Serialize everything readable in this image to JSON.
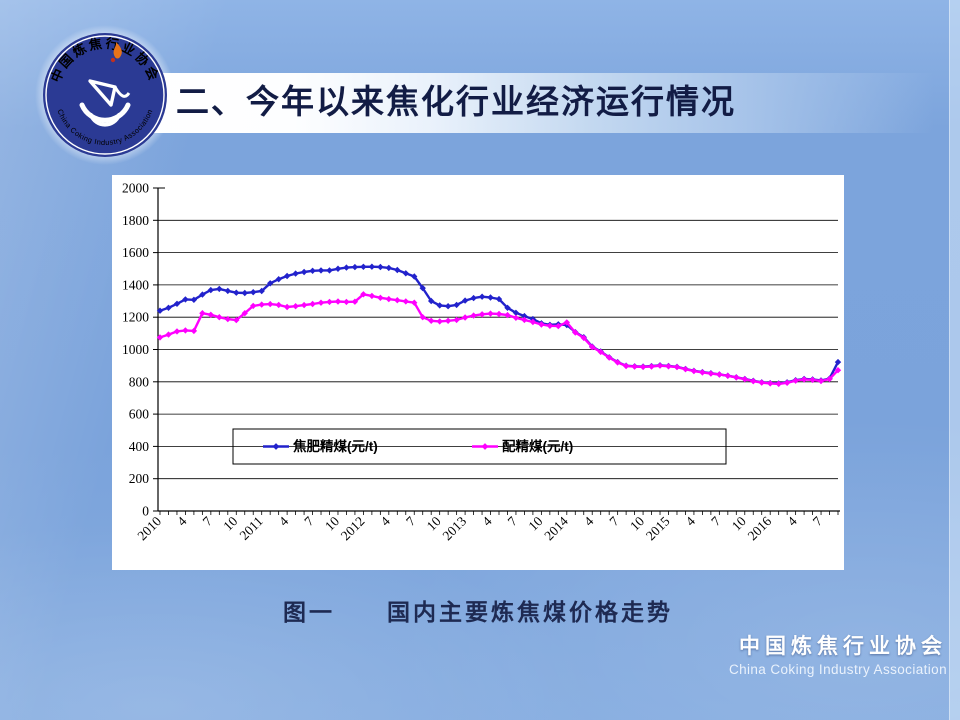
{
  "slide": {
    "title": "二、今年以来焦化行业经济运行情况",
    "caption": "图一　　国内主要炼焦煤价格走势",
    "footer": {
      "cn": "中国炼焦行业协会",
      "en": "China Coking Industry Association"
    },
    "logo": {
      "top_text": "中国炼焦行业协会",
      "bottom_text": "China Coking Industry Association"
    }
  },
  "colors": {
    "background": "#7CA4DC",
    "panel": "#FFFFFF",
    "title_text": "#121C45",
    "caption_text": "#1E2A52",
    "footer_text": "#FFFFFF",
    "axis": "#000000",
    "series_blue": "#2222CC",
    "series_magenta": "#FF00FF",
    "logo_navy": "#2B3A94",
    "logo_flame": "#E8731A"
  },
  "chart_data": {
    "type": "line",
    "title": "",
    "xlabel": "",
    "ylabel": "",
    "x_period": "monthly, Jan 2010 - Sep 2016",
    "x_tick_labels": [
      "2010",
      "4",
      "7",
      "10",
      "2011",
      "4",
      "7",
      "10",
      "2012",
      "4",
      "7",
      "10",
      "2013",
      "4",
      "7",
      "10",
      "2014",
      "4",
      "7",
      "10",
      "2015",
      "4",
      "7",
      "10",
      "2016",
      "4",
      "7"
    ],
    "x_tick_label_every_n_months": 3,
    "ylim": [
      0,
      2000
    ],
    "ytick_step": 200,
    "ytick_labels": [
      "0",
      "200",
      "400",
      "600",
      "800",
      "1000",
      "1200",
      "1400",
      "1600",
      "1800",
      "2000"
    ],
    "grid": "horizontal",
    "legend_position": "bottom-center-box",
    "series": [
      {
        "name": "焦肥精煤(元/t)",
        "color": "#2222CC",
        "values": [
          1240,
          1258,
          1283,
          1310,
          1308,
          1340,
          1368,
          1375,
          1363,
          1352,
          1350,
          1355,
          1362,
          1410,
          1435,
          1455,
          1470,
          1480,
          1487,
          1490,
          1490,
          1500,
          1507,
          1510,
          1512,
          1513,
          1511,
          1505,
          1492,
          1472,
          1452,
          1380,
          1300,
          1273,
          1268,
          1276,
          1303,
          1318,
          1327,
          1322,
          1312,
          1258,
          1227,
          1207,
          1188,
          1162,
          1153,
          1156,
          1152,
          1108,
          1076,
          1018,
          988,
          952,
          922,
          900,
          896,
          894,
          897,
          902,
          898,
          893,
          880,
          868,
          860,
          853,
          846,
          838,
          828,
          818,
          806,
          797,
          792,
          790,
          797,
          810,
          818,
          815,
          808,
          820,
          922
        ]
      },
      {
        "name": "配精煤(元/t)",
        "color": "#FF00FF",
        "values": [
          1075,
          1092,
          1112,
          1118,
          1115,
          1225,
          1215,
          1200,
          1188,
          1182,
          1225,
          1270,
          1278,
          1281,
          1276,
          1263,
          1268,
          1275,
          1282,
          1290,
          1295,
          1297,
          1295,
          1296,
          1342,
          1332,
          1320,
          1312,
          1305,
          1298,
          1290,
          1200,
          1178,
          1174,
          1178,
          1183,
          1198,
          1210,
          1218,
          1222,
          1220,
          1213,
          1196,
          1183,
          1170,
          1155,
          1147,
          1145,
          1168,
          1105,
          1072,
          1015,
          985,
          950,
          920,
          898,
          894,
          892,
          895,
          900,
          896,
          891,
          878,
          866,
          858,
          851,
          845,
          837,
          827,
          816,
          804,
          795,
          790,
          787,
          794,
          807,
          815,
          812,
          805,
          817,
          872
        ]
      }
    ]
  }
}
